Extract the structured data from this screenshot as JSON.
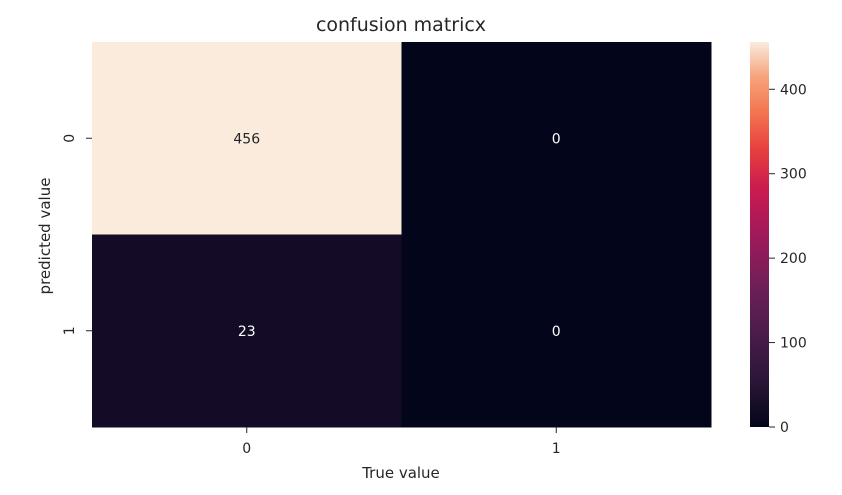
{
  "chart_data": {
    "type": "heatmap",
    "title": "confusion matricx",
    "xlabel": "True value",
    "ylabel": "predicted value",
    "x_categories": [
      "0",
      "1"
    ],
    "y_categories": [
      "0",
      "1"
    ],
    "values": [
      [
        456,
        0
      ],
      [
        23,
        0
      ]
    ],
    "annotations": [
      [
        "456",
        "0"
      ],
      [
        "23",
        "0"
      ]
    ],
    "colormap": "rocket",
    "colorbar": {
      "range": [
        0,
        456
      ],
      "ticks": [
        0,
        100,
        200,
        300,
        400
      ],
      "tick_labels": [
        "0",
        "100",
        "200",
        "300",
        "400"
      ]
    },
    "annotation_colors": {
      "on_light": "#262626",
      "on_dark": "#ffffff"
    }
  }
}
